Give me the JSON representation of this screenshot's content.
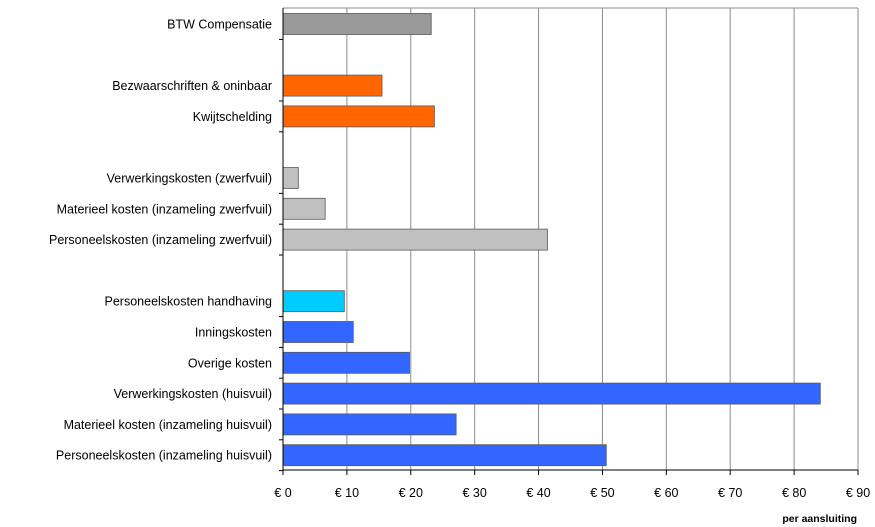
{
  "chart_data": {
    "type": "bar",
    "orientation": "horizontal",
    "title": "",
    "xlabel": "per aansluiting",
    "ylabel": "",
    "xlim": [
      0,
      90
    ],
    "x_tick_labels": [
      "€ 0",
      "€ 10",
      "€ 20",
      "€ 30",
      "€ 40",
      "€ 50",
      "€ 60",
      "€ 70",
      "€ 80",
      "€ 90"
    ],
    "grid": "vertical",
    "legend": "none",
    "categories": [
      {
        "label": "BTW Compensatie",
        "value": 23.2,
        "color": "#999999",
        "group": 0
      },
      {
        "label": "Bezwaarschriften & oninbaar",
        "value": 15.5,
        "color": "#ff6600",
        "group": 1
      },
      {
        "label": "Kwijtschelding",
        "value": 23.7,
        "color": "#ff6600",
        "group": 1
      },
      {
        "label": "Verwerkingskosten (zwerfvuil)",
        "value": 2.4,
        "color": "#c0c0c0",
        "group": 2
      },
      {
        "label": "Materieel kosten (inzameling zwerfvuil)",
        "value": 6.6,
        "color": "#c0c0c0",
        "group": 2
      },
      {
        "label": "Personeelskosten (inzameling zwerfvuil)",
        "value": 41.4,
        "color": "#c0c0c0",
        "group": 2
      },
      {
        "label": "Personeelskosten handhaving",
        "value": 9.6,
        "color": "#00ccff",
        "group": 3
      },
      {
        "label": "Inningskosten",
        "value": 11.0,
        "color": "#3366ff",
        "group": 3
      },
      {
        "label": "Overige kosten",
        "value": 19.8,
        "color": "#3366ff",
        "group": 3
      },
      {
        "label": "Verwerkingskosten (huisvuil)",
        "value": 84.1,
        "color": "#3366ff",
        "group": 3
      },
      {
        "label": "Materieel kosten (inzameling huisvuil)",
        "value": 27.1,
        "color": "#3366ff",
        "group": 3
      },
      {
        "label": "Personeelskosten (inzameling huisvuil)",
        "value": 50.6,
        "color": "#3366ff",
        "group": 3
      }
    ]
  }
}
